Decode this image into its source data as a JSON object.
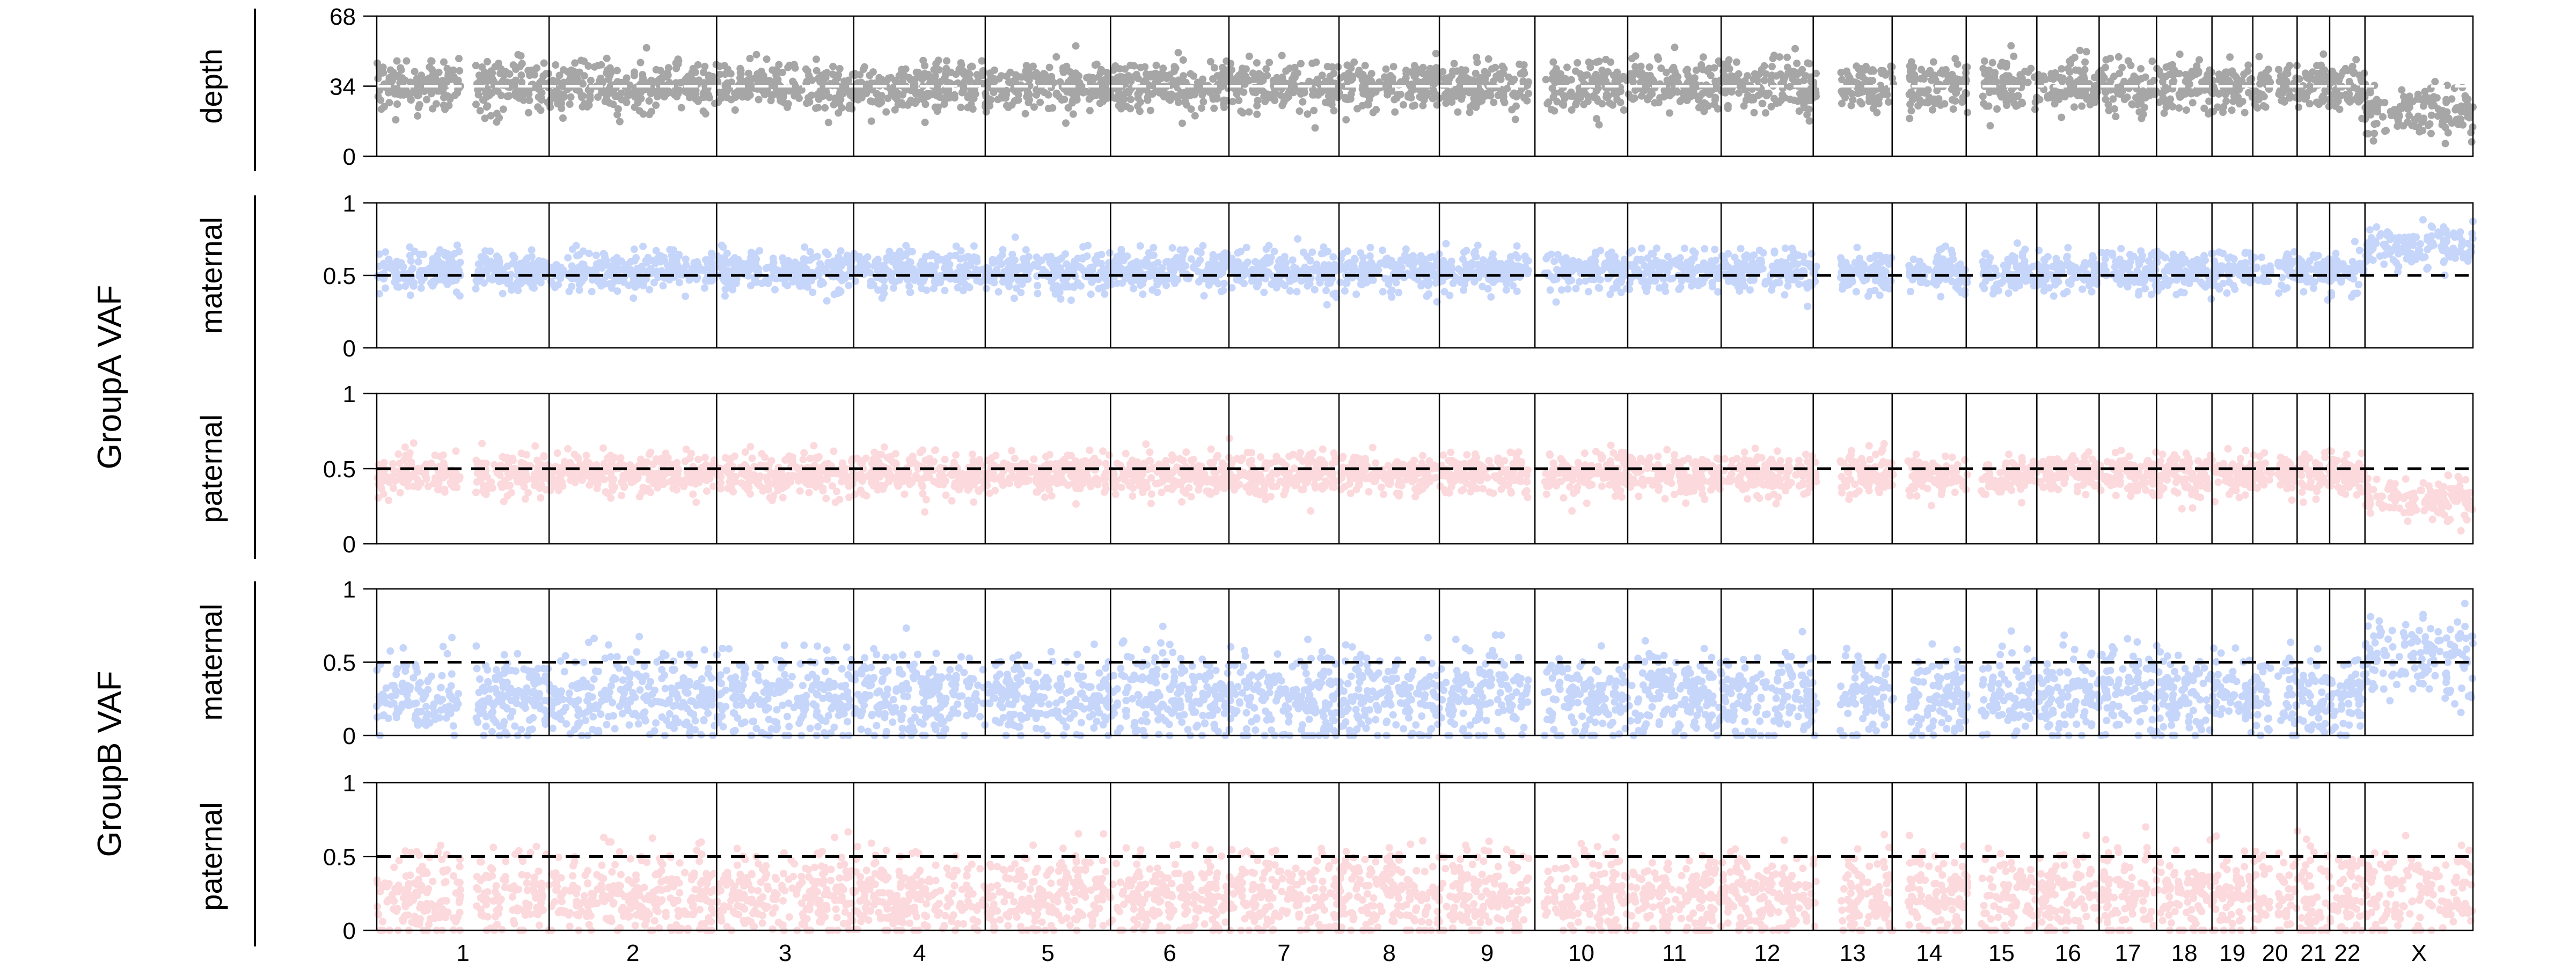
{
  "chart_data": {
    "type": "scatter",
    "x_axis": {
      "label": "",
      "chromosomes": [
        "1",
        "2",
        "3",
        "4",
        "5",
        "6",
        "7",
        "8",
        "9",
        "10",
        "11",
        "12",
        "13",
        "14",
        "15",
        "16",
        "17",
        "18",
        "19",
        "20",
        "21",
        "22",
        "X"
      ],
      "lengths_mb": [
        249,
        242,
        198,
        190,
        181,
        171,
        159,
        145,
        138,
        134,
        135,
        133,
        114,
        107,
        102,
        90,
        83,
        80,
        59,
        64,
        47,
        51,
        156
      ]
    },
    "groups": [
      {
        "name": "",
        "panels": [
          "depth"
        ]
      },
      {
        "name": "GroupA VAF",
        "panels": [
          "groupA-maternal",
          "groupA-paternal"
        ]
      },
      {
        "name": "GroupB VAF",
        "panels": [
          "groupB-maternal",
          "groupB-paternal"
        ]
      }
    ],
    "panels": [
      {
        "id": "depth",
        "ylabel": "depth",
        "ylim": [
          0,
          68
        ],
        "yticks": [
          "0",
          "34",
          "68"
        ],
        "reference_line": 34,
        "color": "#000000",
        "gaps_mb": [
          [
            121,
            143
          ],
          [
            1664,
            1686
          ],
          [
            2080,
            2114
          ],
          [
            2191,
            2212
          ],
          [
            2298,
            2318
          ],
          [
            2736,
            2746
          ]
        ],
        "series": {
          "name": "",
          "baseline": 34,
          "x_baseline": 22,
          "spread": 6,
          "color": "#000000",
          "opacity": 0.35
        }
      },
      {
        "id": "groupA-maternal",
        "ylabel": "maternal",
        "ylim": [
          0,
          1
        ],
        "yticks": [
          "0",
          "0.5",
          "1"
        ],
        "reference_line": 0.5,
        "color": "#5b86f0",
        "gaps_mb": [
          [
            121,
            143
          ],
          [
            1664,
            1686
          ],
          [
            2080,
            2114
          ],
          [
            2191,
            2212
          ],
          [
            2298,
            2318
          ],
          [
            2736,
            2746
          ]
        ],
        "series": {
          "name": "",
          "baseline": 0.53,
          "x_baseline": 0.7,
          "spread": 0.07,
          "color": "#5b86f0",
          "opacity": 0.35
        }
      },
      {
        "id": "groupA-paternal",
        "ylabel": "paternal",
        "ylim": [
          0,
          1
        ],
        "yticks": [
          "0",
          "0.5",
          "1"
        ],
        "reference_line": 0.5,
        "color": "#f4939a",
        "gaps_mb": [
          [
            121,
            143
          ],
          [
            1664,
            1686
          ],
          [
            2080,
            2114
          ],
          [
            2191,
            2212
          ],
          [
            2298,
            2318
          ],
          [
            2736,
            2746
          ]
        ],
        "series": {
          "name": "",
          "baseline": 0.46,
          "x_baseline": 0.3,
          "spread": 0.07,
          "color": "#f4939a",
          "opacity": 0.35
        }
      },
      {
        "id": "groupB-maternal",
        "ylabel": "maternal",
        "ylim": [
          0,
          1
        ],
        "yticks": [
          "0",
          "0.5",
          "1"
        ],
        "reference_line": 0.5,
        "color": "#5b86f0",
        "gaps_mb": [
          [
            121,
            143
          ],
          [
            1664,
            1686
          ],
          [
            2080,
            2114
          ],
          [
            2191,
            2212
          ],
          [
            2298,
            2318
          ],
          [
            2736,
            2746
          ]
        ],
        "series": {
          "name": "",
          "baseline": 0.27,
          "x_baseline": 0.55,
          "spread": 0.15,
          "color": "#5b86f0",
          "opacity": 0.35
        }
      },
      {
        "id": "groupB-paternal",
        "ylabel": "paternal",
        "ylim": [
          0,
          1
        ],
        "yticks": [
          "0",
          "0.5",
          "1"
        ],
        "reference_line": 0.5,
        "color": "#f4939a",
        "gaps_mb": [
          [
            121,
            143
          ],
          [
            1664,
            1686
          ],
          [
            2080,
            2114
          ],
          [
            2191,
            2212
          ],
          [
            2298,
            2318
          ],
          [
            2736,
            2746
          ]
        ],
        "series": {
          "name": "",
          "baseline": 0.23,
          "x_baseline": null,
          "spread": 0.15,
          "color": "#f4939a",
          "opacity": 0.35
        }
      }
    ],
    "grid": false,
    "legend": "none"
  }
}
